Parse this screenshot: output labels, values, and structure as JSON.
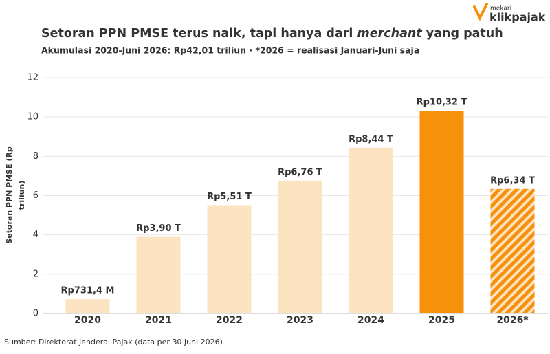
{
  "brand": {
    "top": "mekari",
    "name": "klikpajak"
  },
  "chart_data": {
    "type": "bar",
    "title": [
      "Setoran PPN PMSE terus naik, tapi hanya dari ",
      "merchant",
      " yang patuh"
    ],
    "subtitle": "Akumulasi 2020-Juni 2026: Rp42,01 triliun · *2026 = realisasi Januari-Juni saja",
    "y_label": [
      "Setoran PPN PMSE (Rp",
      "triliun)"
    ],
    "categories": [
      "2020",
      "2021",
      "2022",
      "2023",
      "2024",
      "2025",
      "2026*"
    ],
    "values": [
      0.7314,
      3.9,
      5.51,
      6.76,
      8.44,
      10.32,
      6.34
    ],
    "value_labels": [
      "Rp731,4 M",
      "Rp3,90 T",
      "Rp5,51 T",
      "Rp6,76 T",
      "Rp8,44 T",
      "Rp10,32 T",
      "Rp6,34 T"
    ],
    "colors": [
      "#fce3c1",
      "#fce3c1",
      "#fce3c1",
      "#fce3c1",
      "#fce3c1",
      "#f7900a",
      "#f7900a"
    ],
    "hatch": [
      false,
      false,
      false,
      false,
      false,
      false,
      true
    ],
    "ylim": [
      0,
      12
    ],
    "yticks": [
      0,
      2,
      4,
      6,
      8,
      10,
      12
    ],
    "grid": true,
    "source": "Sumber: Direktorat Jenderal Pajak (data per 30 Juni 2026)"
  }
}
